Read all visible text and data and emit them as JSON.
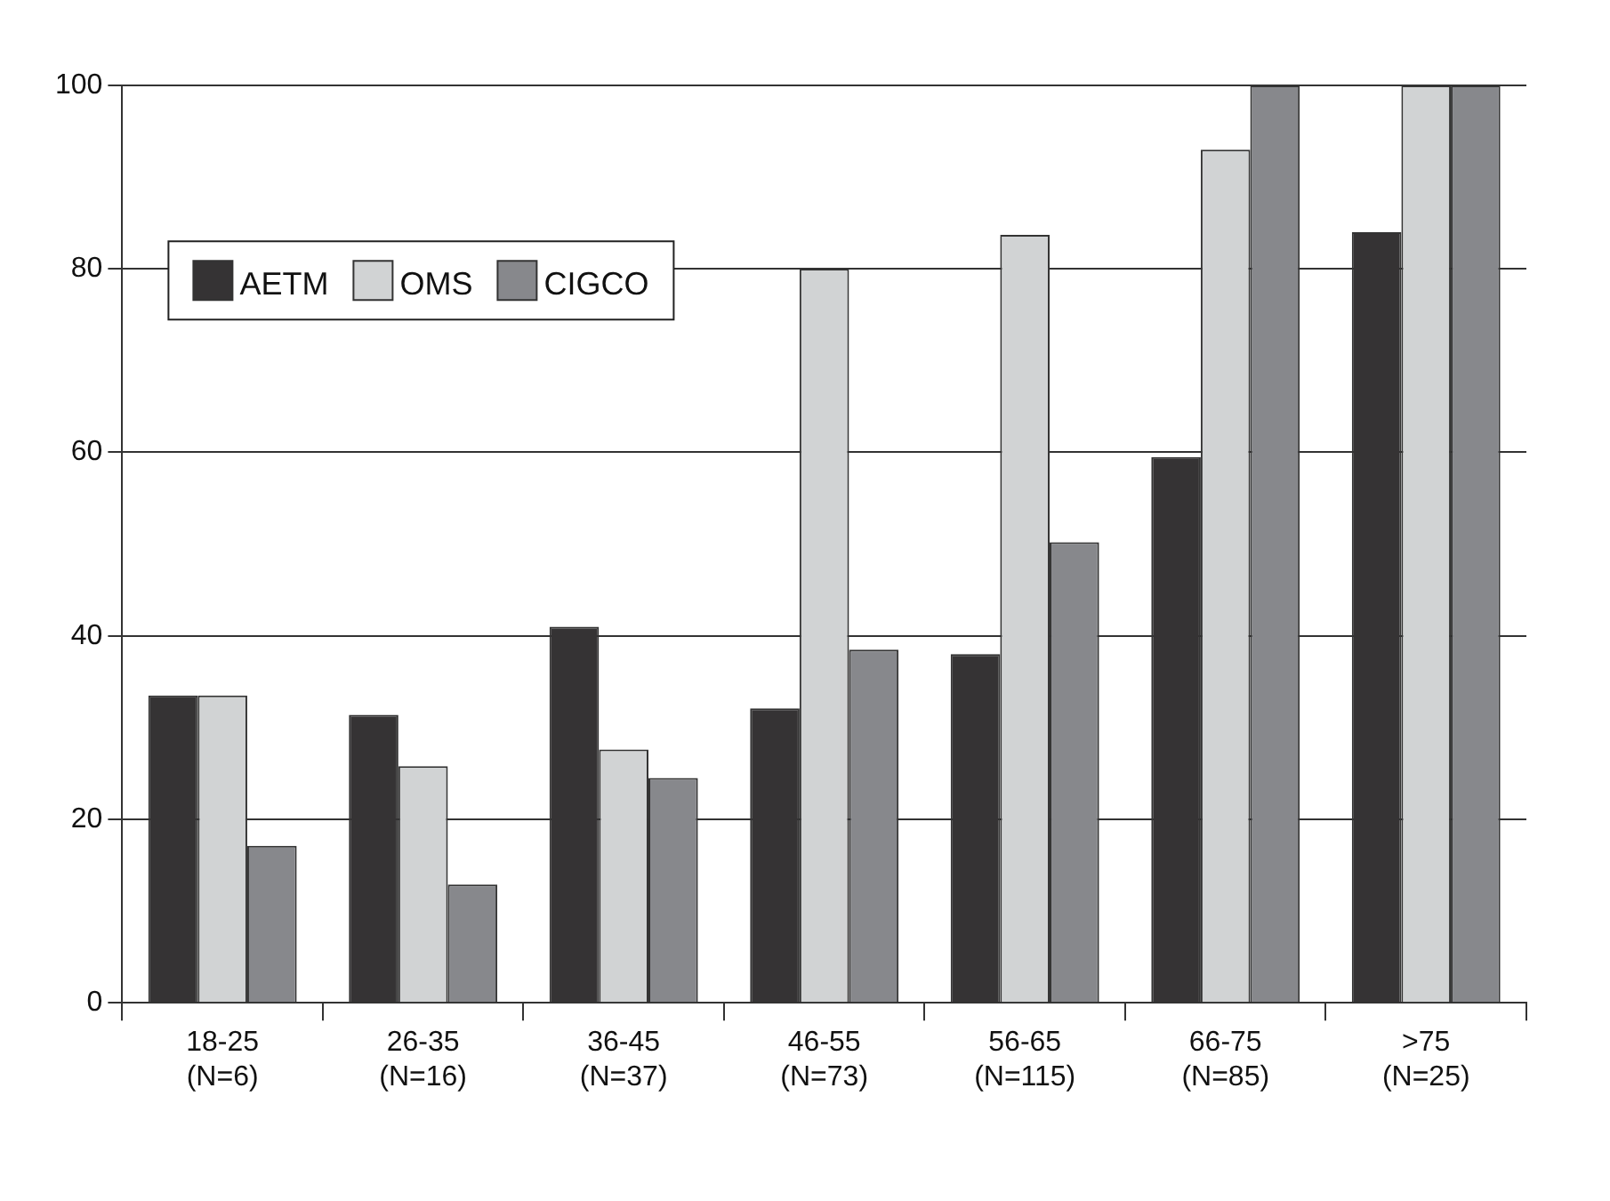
{
  "chart_data": {
    "type": "bar",
    "categories": [
      "18-25 (N=6)",
      "26-35 (N=16)",
      "36-45 (N=37)",
      "46-55 (N=73)",
      "56-65 (N=115)",
      "66-75 (N=85)",
      ">75 (N=25)"
    ],
    "series": [
      {
        "name": "AETM",
        "color": "#353334",
        "values": [
          33.5,
          31.4,
          41.0,
          32.1,
          38.0,
          59.5,
          84.0
        ]
      },
      {
        "name": "OMS",
        "color": "#d1d3d4",
        "values": [
          33.5,
          25.8,
          27.6,
          80.0,
          83.7,
          93.0,
          100
        ]
      },
      {
        "name": "CIGCO",
        "color": "#87888c",
        "values": [
          17.1,
          12.9,
          24.5,
          38.5,
          50.2,
          100,
          100
        ]
      }
    ],
    "ylim": [
      0,
      100
    ],
    "yticks": [
      0,
      20,
      40,
      60,
      80,
      100
    ],
    "grid": "y",
    "legend": "top left"
  }
}
